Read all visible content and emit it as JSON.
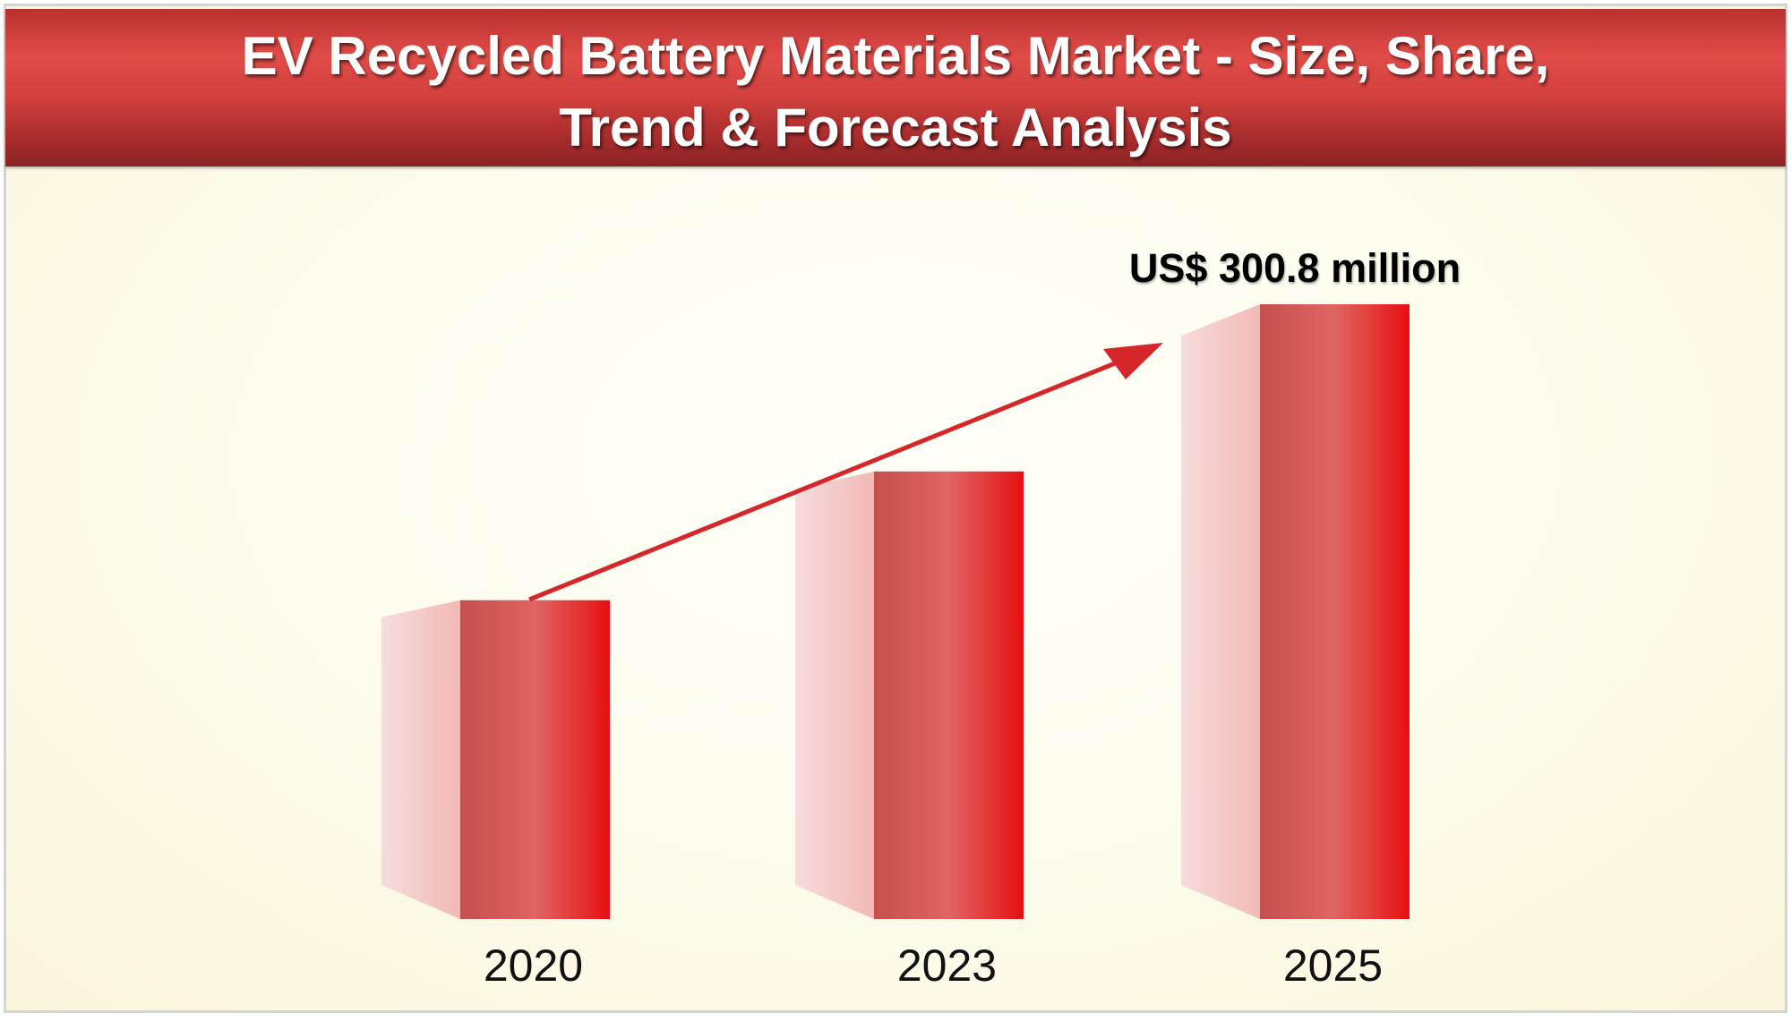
{
  "header": {
    "title_line1": "EV Recycled Battery Materials Market - Size, Share,",
    "title_line2": "Trend & Forecast Analysis"
  },
  "colors": {
    "header_red": "#d3403d",
    "bar_dark": "#c4504d",
    "bar_light": "#e06462",
    "bar_bright": "#e60f12",
    "bar_side": "#f4c4c2",
    "arrow": "#d5262a",
    "background": "#fdfcee"
  },
  "chart_data": {
    "type": "bar",
    "title": "EV Recycled Battery Materials Market - Size, Share, Trend & Forecast Analysis",
    "categories": [
      "2020",
      "2023",
      "2025"
    ],
    "values": [
      156,
      219,
      300.8
    ],
    "unit": "US$ million",
    "annotations": [
      {
        "category": "2025",
        "text": "US$ 300.8 million"
      }
    ],
    "trend_arrow": {
      "from": "2020",
      "to": "2025",
      "direction": "up"
    },
    "xlabel": "",
    "ylabel": "",
    "ylim": [
      0,
      300.8
    ],
    "grid": false,
    "legend": "none"
  }
}
